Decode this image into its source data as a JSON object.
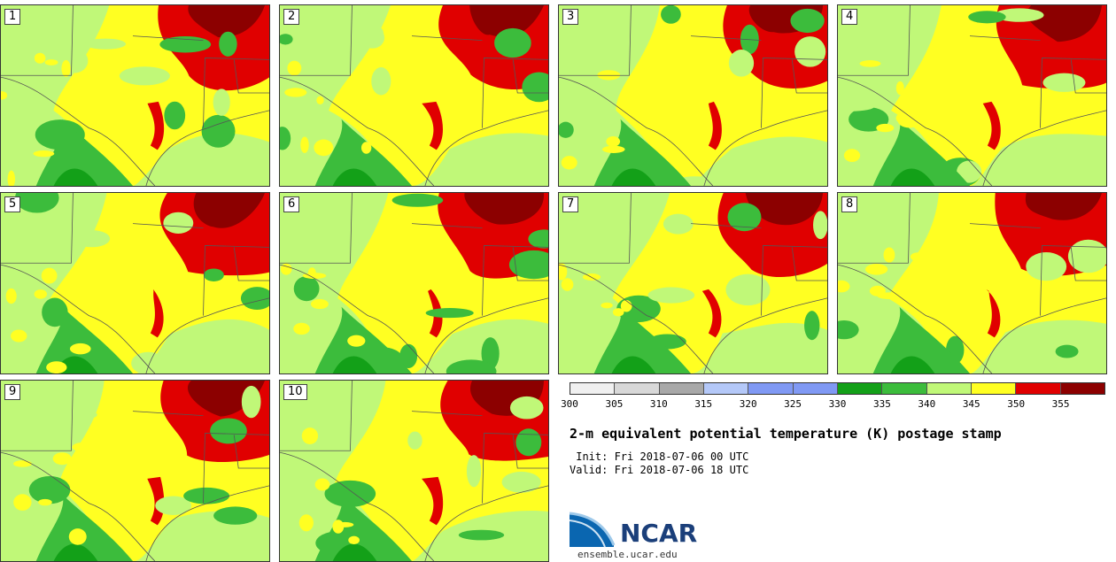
{
  "panels": [
    {
      "label": "1"
    },
    {
      "label": "2"
    },
    {
      "label": "3"
    },
    {
      "label": "4"
    },
    {
      "label": "5"
    },
    {
      "label": "6"
    },
    {
      "label": "7"
    },
    {
      "label": "8"
    },
    {
      "label": "9"
    },
    {
      "label": "10"
    }
  ],
  "colorbar": {
    "colors": [
      "#f0f0f0",
      "#d8d8d8",
      "#a8a8a8",
      "#b4c8f8",
      "#8099f4",
      "#8099f4",
      "#13a018",
      "#3cbc3c",
      "#c0f878",
      "#ffff22",
      "#e00000",
      "#8c0000"
    ],
    "ticks": [
      "300",
      "305",
      "310",
      "315",
      "320",
      "325",
      "330",
      "335",
      "340",
      "345",
      "350",
      "355"
    ]
  },
  "title": "2-m equivalent potential temperature (K) postage stamp",
  "init": " Init: Fri 2018-07-06 00 UTC",
  "valid": "Valid: Fri 2018-07-06 18 UTC",
  "logo": {
    "text": "NCAR",
    "url": "ensemble.ucar.edu"
  }
}
